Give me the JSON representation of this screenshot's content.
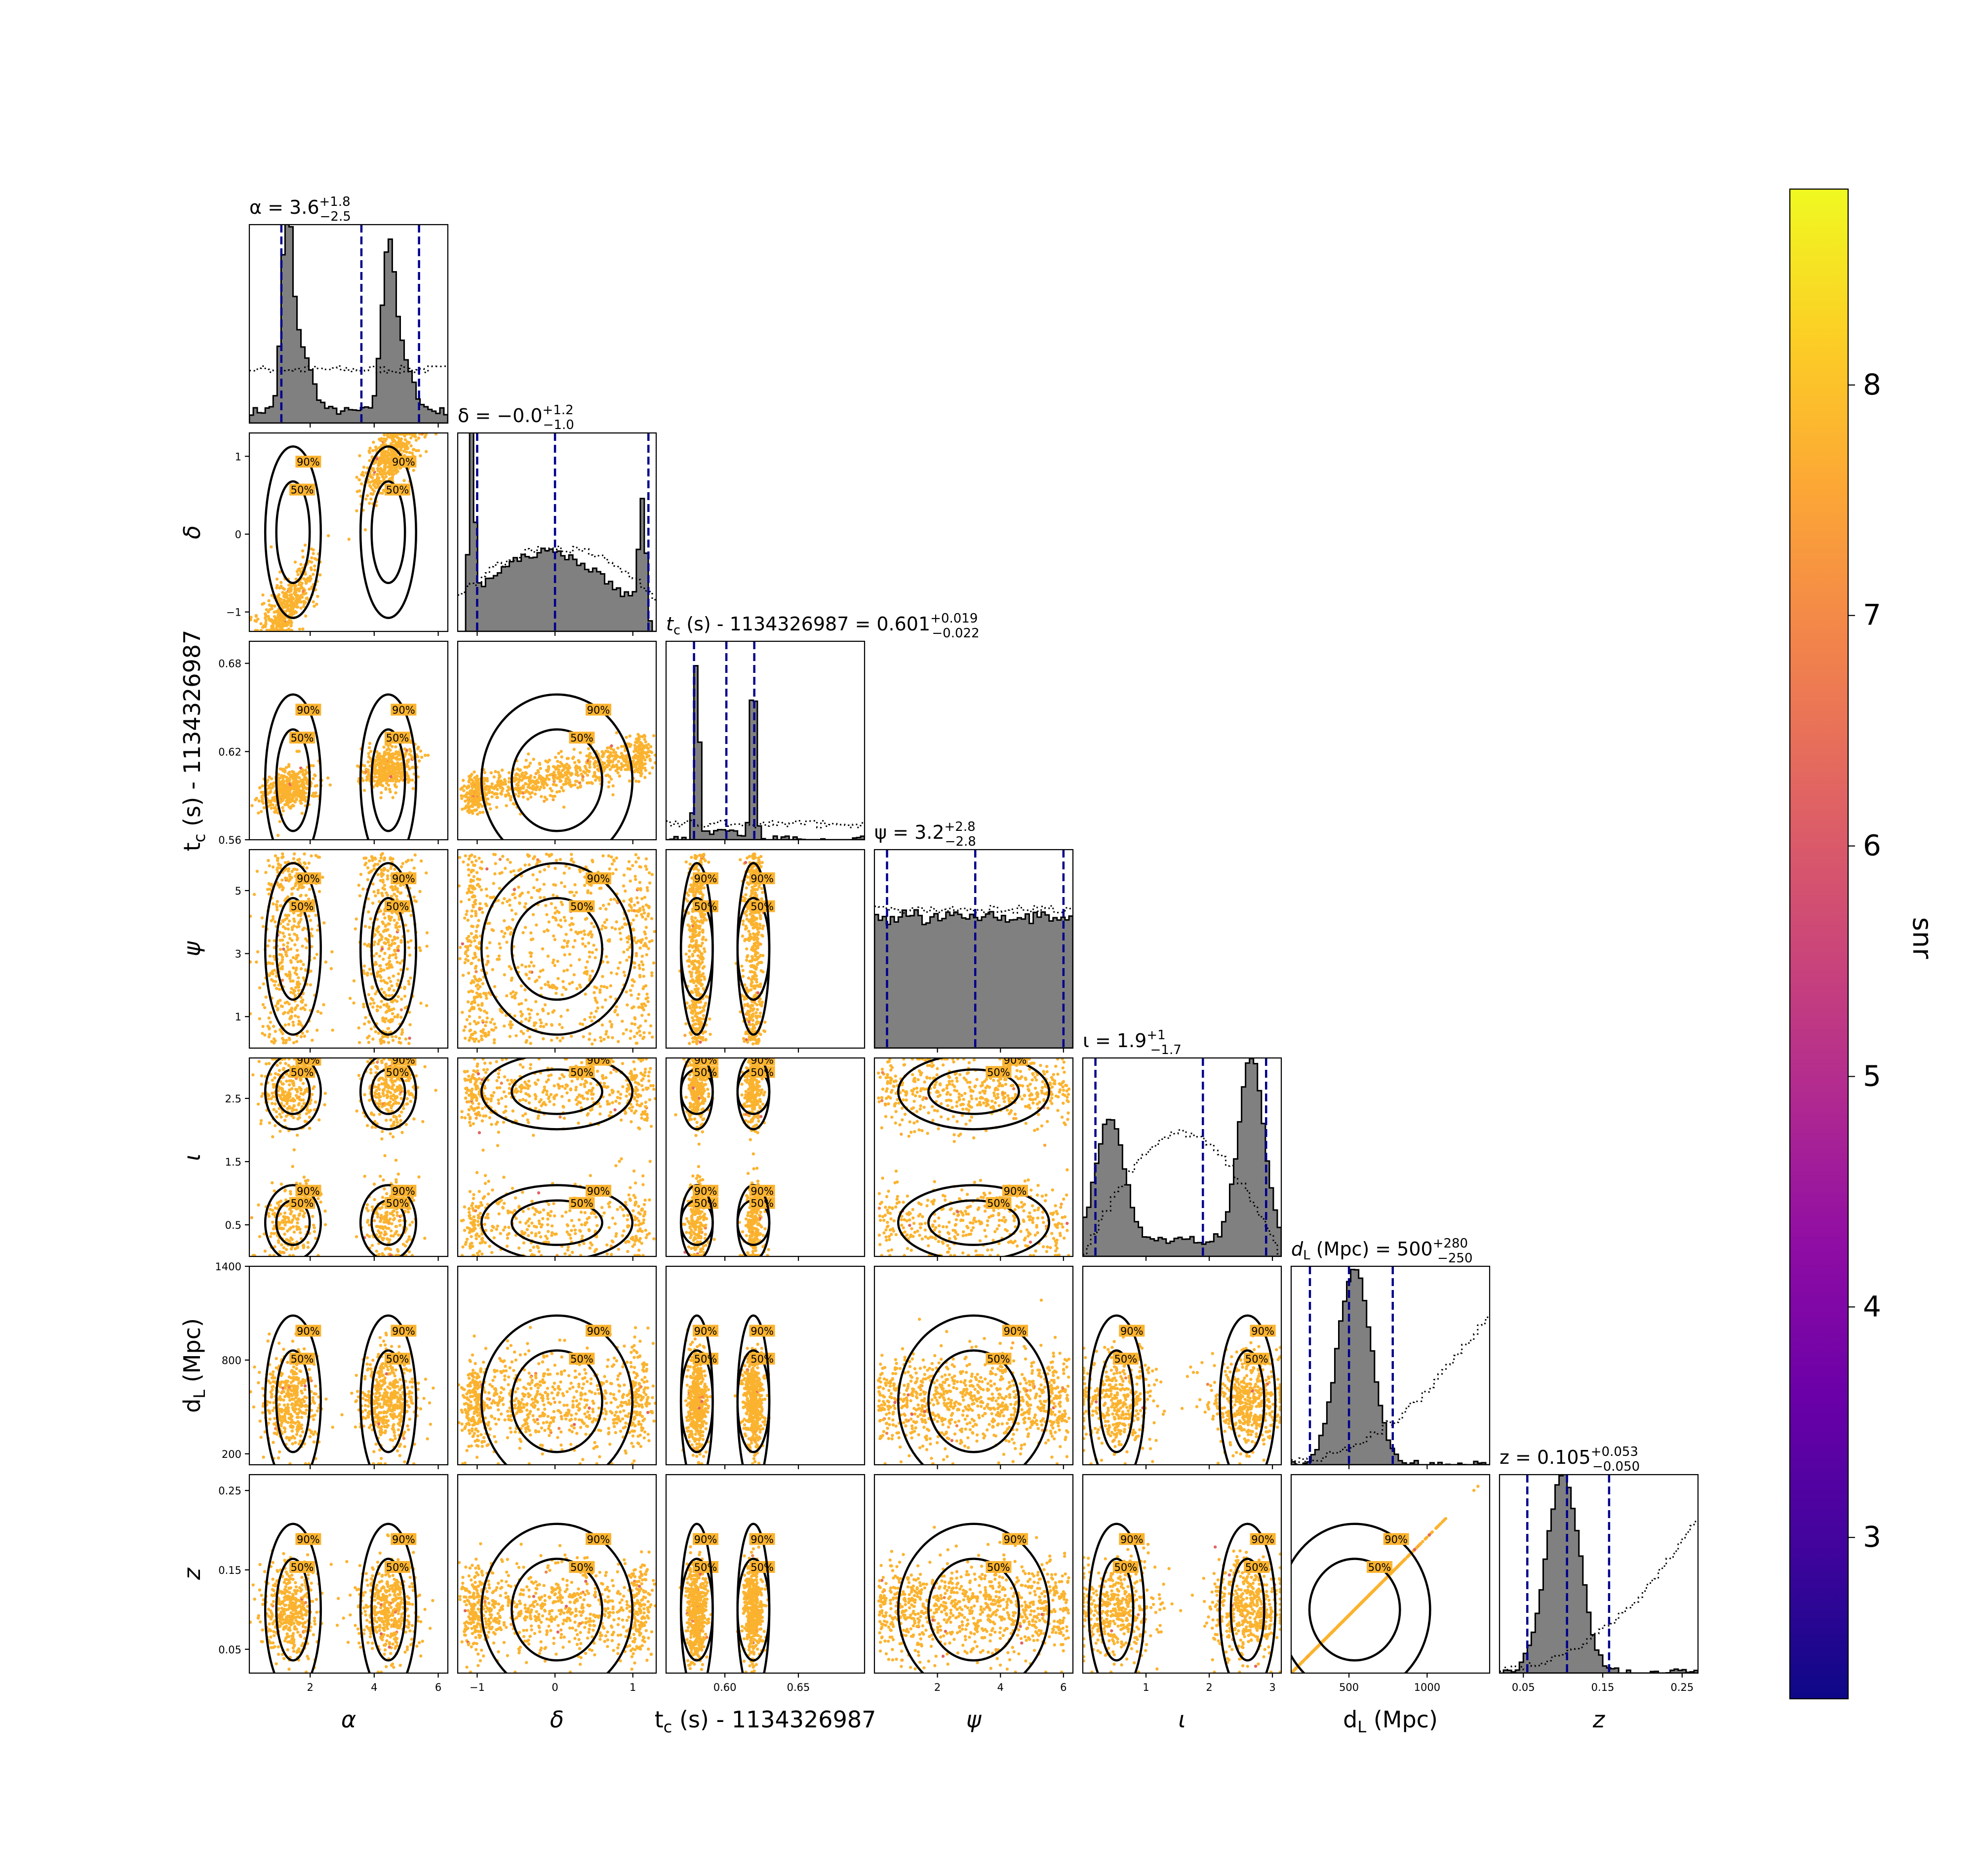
{
  "chart_data": {
    "type": "scatter",
    "variant": "corner-plot",
    "parameters": [
      {
        "key": "alpha",
        "label": "α",
        "range": [
          0.1,
          6.3
        ],
        "ticks": [
          2,
          4,
          6
        ],
        "tick_labels": [
          "2",
          "4",
          "6"
        ],
        "title": {
          "name": "α",
          "median": "3.6",
          "plus": "+1.8",
          "minus": "−2.5"
        },
        "quantiles": [
          1.1,
          3.6,
          5.4
        ],
        "hist_shape": "bimodal"
      },
      {
        "key": "delta",
        "label": "δ",
        "range": [
          -1.25,
          1.3
        ],
        "ticks": [
          -1,
          0,
          1
        ],
        "tick_labels": [
          "−1",
          "0",
          "1"
        ],
        "title": {
          "name": "δ",
          "median": "−0.0",
          "plus": "+1.2",
          "minus": "−1.0"
        },
        "quantiles": [
          -1.0,
          0.0,
          1.2
        ],
        "hist_shape": "edges"
      },
      {
        "key": "tc",
        "label": "t_c (s) - 1134326987",
        "range": [
          0.56,
          0.695
        ],
        "ticks": [
          0.6,
          0.65
        ],
        "tick_labels": [
          "0.60",
          "0.65"
        ],
        "y_ticks": [
          0.56,
          0.62,
          0.68
        ],
        "y_tick_labels": [
          "0.56",
          "0.62",
          "0.68"
        ],
        "title": {
          "name": "t_c (s) - 1134326987",
          "median": "0.601",
          "plus": "+0.019",
          "minus": "−0.022"
        },
        "quantiles": [
          0.579,
          0.601,
          0.62
        ],
        "hist_shape": "twin-spikes"
      },
      {
        "key": "psi",
        "label": "ψ",
        "range": [
          0.0,
          6.3
        ],
        "ticks": [
          2,
          4,
          6
        ],
        "tick_labels": [
          "2",
          "4",
          "6"
        ],
        "y_ticks": [
          1,
          3,
          5
        ],
        "y_tick_labels": [
          "1",
          "3",
          "5"
        ],
        "title": {
          "name": "ψ",
          "median": "3.2",
          "plus": "+2.8",
          "minus": "−2.8"
        },
        "quantiles": [
          0.4,
          3.2,
          6.0
        ],
        "hist_shape": "flat"
      },
      {
        "key": "iota",
        "label": "ι",
        "range": [
          0.0,
          3.14
        ],
        "ticks": [
          1,
          2,
          3
        ],
        "tick_labels": [
          "1",
          "2",
          "3"
        ],
        "y_ticks": [
          0.5,
          1.5,
          2.5
        ],
        "y_tick_labels": [
          "0.5",
          "1.5",
          "2.5"
        ],
        "title": {
          "name": "ι",
          "median": "1.9",
          "plus": "+1",
          "minus": "−1.7"
        },
        "quantiles": [
          0.2,
          1.9,
          2.9
        ],
        "hist_shape": "bimodal-edges"
      },
      {
        "key": "dL",
        "label": "d_L (Mpc)",
        "range": [
          130,
          1400
        ],
        "ticks": [
          500,
          1000
        ],
        "tick_labels": [
          "500",
          "1000"
        ],
        "y_ticks": [
          200,
          800,
          1400
        ],
        "y_tick_labels": [
          "200",
          "800",
          "1400"
        ],
        "title": {
          "name": "d_L (Mpc)",
          "median": "500",
          "plus": "+280",
          "minus": "−250"
        },
        "quantiles": [
          250,
          500,
          780
        ],
        "hist_shape": "peak"
      },
      {
        "key": "z",
        "label": "z",
        "range": [
          0.02,
          0.27
        ],
        "ticks": [
          0.05,
          0.15,
          0.25
        ],
        "tick_labels": [
          "0.05",
          "0.15",
          "0.25"
        ],
        "y_ticks": [
          0.05,
          0.15,
          0.25
        ],
        "y_tick_labels": [
          "0.05",
          "0.15",
          "0.25"
        ],
        "title": {
          "name": "z",
          "median": "0.105",
          "plus": "+0.053",
          "minus": "−0.050"
        },
        "quantiles": [
          0.055,
          0.105,
          0.158
        ],
        "hist_shape": "peak"
      }
    ],
    "contour_levels": [
      "50%",
      "90%"
    ],
    "colorbar": {
      "label": "snr",
      "range": [
        2.3,
        8.85
      ],
      "ticks": [
        3,
        4,
        5,
        6,
        7,
        8
      ],
      "tick_labels": [
        "3",
        "4",
        "5",
        "6",
        "7",
        "8"
      ],
      "colormap": "plasma"
    },
    "colors": {
      "histogram_fill": "#808080",
      "quantile_line": "#00008b",
      "points": "#fbb32f",
      "contour": "#000000"
    }
  }
}
